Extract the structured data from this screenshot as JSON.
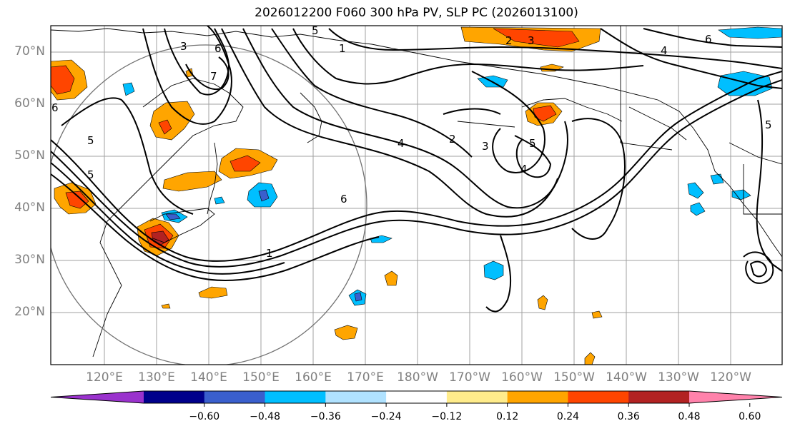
{
  "title": "2026012200 F060 300 hPa PV, SLP PC (2026013100)",
  "lat_labels": [
    "70°N",
    "60°N",
    "50°N",
    "40°N",
    "30°N",
    "20°N"
  ],
  "lon_labels": [
    "120°E",
    "130°E",
    "140°E",
    "150°E",
    "160°E",
    "170°E",
    "180°W",
    "170°W",
    "160°W",
    "150°W",
    "140°W",
    "130°W",
    "120°W"
  ],
  "contour_labels": [
    "5",
    "3",
    "6",
    "7",
    "1",
    "2",
    "3",
    "6",
    "4",
    "5",
    "2",
    "3",
    "4",
    "5",
    "6",
    "5",
    "6",
    "1",
    "4",
    "5"
  ],
  "colorbar": {
    "ticks": [
      "−0.60",
      "−0.48",
      "−0.36",
      "−0.24",
      "−0.12",
      "0.12",
      "0.24",
      "0.36",
      "0.48",
      "0.60"
    ],
    "colors": [
      "#9a32cd",
      "#00008b",
      "#3a5fcd",
      "#00bfff",
      "#b0e2ff",
      "#ffffff",
      "#ffec8b",
      "#ffa500",
      "#ff4500",
      "#b22222",
      "#ff82ab"
    ]
  },
  "fill_colors": {
    "orange": "#ffa500",
    "red": "#ff4500",
    "darkred": "#b22222",
    "lightblue": "#00bfff",
    "blue": "#3a5fcd"
  }
}
